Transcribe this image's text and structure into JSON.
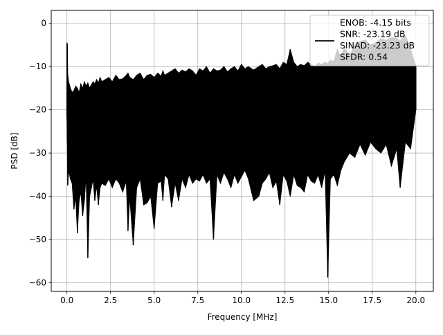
{
  "chart_data": {
    "type": "line",
    "xlabel": "Frequency [MHz]",
    "ylabel": "PSD [dB]",
    "xlim": [
      -0.9,
      21.0
    ],
    "ylim": [
      -62.0,
      3.0
    ],
    "grid": true,
    "legend_position": "top-right",
    "x_ticks": [
      {
        "value": 0.0,
        "label": "0.0"
      },
      {
        "value": 2.5,
        "label": "2.5"
      },
      {
        "value": 5.0,
        "label": "5.0"
      },
      {
        "value": 7.5,
        "label": "7.5"
      },
      {
        "value": 10.0,
        "label": "10.0"
      },
      {
        "value": 12.5,
        "label": "12.5"
      },
      {
        "value": 15.0,
        "label": "15.0"
      },
      {
        "value": 17.5,
        "label": "17.5"
      },
      {
        "value": 20.0,
        "label": "20.0"
      }
    ],
    "y_ticks": [
      {
        "value": 0,
        "label": "0"
      },
      {
        "value": -10,
        "label": "−10"
      },
      {
        "value": -20,
        "label": "−20"
      },
      {
        "value": -30,
        "label": "−30"
      },
      {
        "value": -40,
        "label": "−40"
      },
      {
        "value": -50,
        "label": "−50"
      },
      {
        "value": -60,
        "label": "−60"
      }
    ],
    "legend": [
      "ENOB: -4.15 bits",
      "SNR: -23.19 dB",
      "SINAD: -23.23 dB",
      "SFDR: 0.54"
    ],
    "series": [
      {
        "color": "#000000",
        "x": [
          0.0,
          0.02,
          0.05,
          0.1,
          0.2,
          0.3,
          0.4,
          0.5,
          0.6,
          0.7,
          0.8,
          0.9,
          1.0,
          1.1,
          1.2,
          1.3,
          1.4,
          1.5,
          1.6,
          1.7,
          1.8,
          1.9,
          2.0,
          2.2,
          2.4,
          2.6,
          2.8,
          3.0,
          3.2,
          3.4,
          3.5,
          3.6,
          3.8,
          4.0,
          4.2,
          4.4,
          4.6,
          4.8,
          5.0,
          5.2,
          5.4,
          5.5,
          5.6,
          5.8,
          6.0,
          6.2,
          6.4,
          6.6,
          6.8,
          7.0,
          7.2,
          7.4,
          7.6,
          7.8,
          8.0,
          8.2,
          8.4,
          8.6,
          8.8,
          9.0,
          9.2,
          9.4,
          9.6,
          9.8,
          10.0,
          10.2,
          10.4,
          10.7,
          11.0,
          11.2,
          11.4,
          11.6,
          11.8,
          12.0,
          12.2,
          12.4,
          12.6,
          12.8,
          13.0,
          13.2,
          13.4,
          13.6,
          13.8,
          14.0,
          14.2,
          14.4,
          14.6,
          14.8,
          14.95,
          15.1,
          15.3,
          15.5,
          15.7,
          15.9,
          16.2,
          16.5,
          16.8,
          17.1,
          17.4,
          17.7,
          18.0,
          18.3,
          18.6,
          18.9,
          19.1,
          19.4,
          19.7,
          20.0
        ],
        "y_upper": [
          -4.5,
          -4.8,
          -12.0,
          -13.5,
          -15.0,
          -16.0,
          -15.5,
          -14.5,
          -15.0,
          -16.0,
          -14.0,
          -15.0,
          -13.5,
          -14.5,
          -13.8,
          -15.0,
          -14.2,
          -13.5,
          -14.0,
          -13.0,
          -13.8,
          -12.5,
          -13.5,
          -13.0,
          -12.5,
          -13.5,
          -12.0,
          -13.0,
          -12.8,
          -12.0,
          -11.5,
          -12.5,
          -13.0,
          -12.0,
          -11.5,
          -13.0,
          -12.0,
          -11.8,
          -12.5,
          -11.5,
          -12.2,
          -11.0,
          -12.0,
          -11.5,
          -11.0,
          -10.5,
          -11.5,
          -10.8,
          -11.2,
          -10.5,
          -11.0,
          -12.0,
          -10.5,
          -11.0,
          -10.0,
          -11.5,
          -10.5,
          -11.0,
          -10.8,
          -10.0,
          -11.2,
          -10.5,
          -10.0,
          -11.0,
          -9.5,
          -10.5,
          -10.0,
          -10.8,
          -10.0,
          -9.5,
          -10.5,
          -10.0,
          -9.8,
          -9.5,
          -10.5,
          -9.0,
          -9.5,
          -6.0,
          -9.0,
          -10.0,
          -9.5,
          -9.8,
          -9.0,
          -9.5,
          -10.0,
          -9.2,
          -9.5,
          -9.0,
          -9.3,
          -8.5,
          -8.8,
          -6.0,
          -8.0,
          -5.5,
          -7.5,
          -5.0,
          -4.2,
          -3.8,
          -5.0,
          -4.5,
          -3.5,
          -4.0,
          -3.2,
          -3.5,
          -4.0,
          -2.8,
          -6.0,
          -10.0
        ],
        "y_lower": [
          -22.0,
          -27.5,
          -37.5,
          -34.0,
          -36.0,
          -37.0,
          -43.0,
          -40.0,
          -48.5,
          -41.0,
          -39.0,
          -44.5,
          -41.0,
          -35.0,
          -54.3,
          -40.0,
          -38.0,
          -36.0,
          -41.0,
          -37.5,
          -42.0,
          -38.0,
          -37.0,
          -37.5,
          -36.0,
          -38.0,
          -36.0,
          -37.0,
          -39.0,
          -36.5,
          -48.0,
          -40.0,
          -51.3,
          -38.0,
          -36.0,
          -42.0,
          -41.5,
          -40.0,
          -47.5,
          -37.0,
          -36.5,
          -41.0,
          -35.0,
          -36.0,
          -42.5,
          -37.0,
          -41.0,
          -36.0,
          -38.0,
          -35.0,
          -37.0,
          -36.0,
          -36.5,
          -35.0,
          -37.0,
          -36.0,
          -50.0,
          -35.0,
          -37.0,
          -34.5,
          -36.0,
          -38.0,
          -35.0,
          -37.0,
          -35.5,
          -34.0,
          -36.0,
          -41.0,
          -40.0,
          -37.0,
          -36.0,
          -34.5,
          -38.0,
          -36.5,
          -42.0,
          -35.0,
          -36.5,
          -40.0,
          -35.0,
          -37.5,
          -38.0,
          -39.0,
          -35.0,
          -36.5,
          -37.0,
          -35.0,
          -38.0,
          -34.0,
          -58.8,
          -36.0,
          -35.0,
          -37.5,
          -34.0,
          -32.0,
          -30.0,
          -31.0,
          -28.0,
          -30.5,
          -27.5,
          -29.0,
          -30.0,
          -28.0,
          -33.0,
          -29.0,
          -38.0,
          -27.5,
          -29.0,
          -20.0
        ]
      }
    ]
  }
}
